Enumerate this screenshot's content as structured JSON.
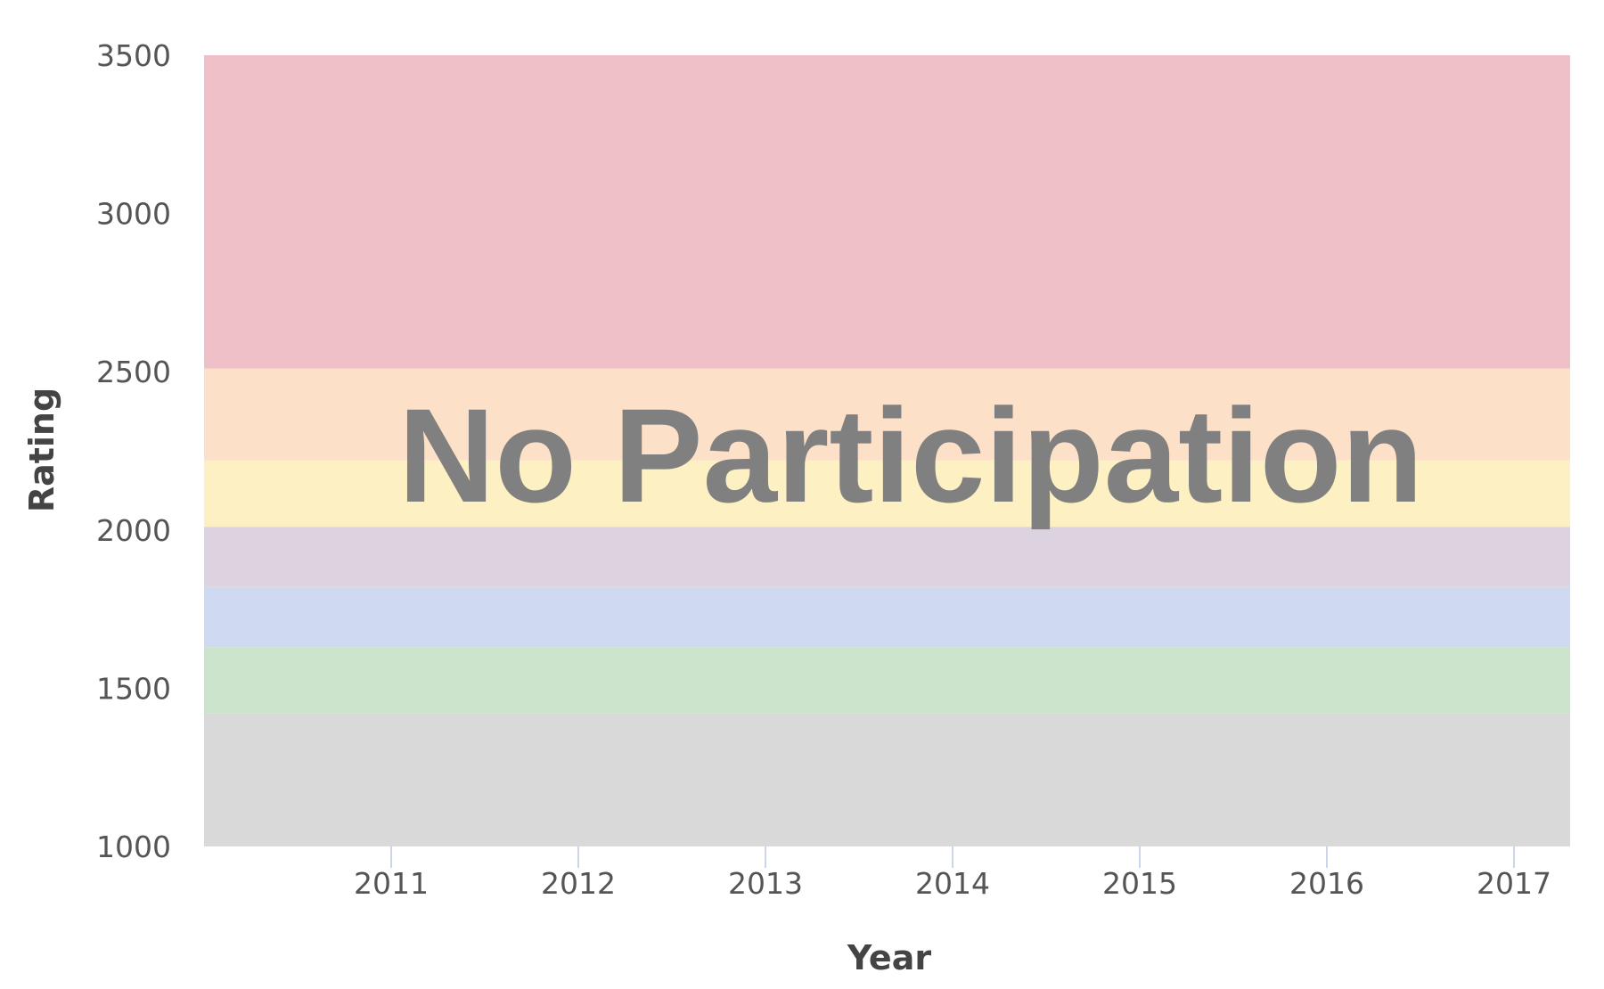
{
  "chart_data": {
    "type": "area",
    "xlabel": "Year",
    "ylabel": "Rating",
    "ylim": [
      1000,
      3500
    ],
    "xlim": [
      2010,
      2017.3
    ],
    "y_ticks": [
      1000,
      1500,
      2000,
      2500,
      3000,
      3500
    ],
    "x_ticks": [
      2011,
      2012,
      2013,
      2014,
      2015,
      2016,
      2017
    ],
    "rating_bands": [
      {
        "from": 1000,
        "to": 1420,
        "color": "#d9d9d9"
      },
      {
        "from": 1420,
        "to": 1630,
        "color": "#cce3cc"
      },
      {
        "from": 1630,
        "to": 1820,
        "color": "#cfdaf2"
      },
      {
        "from": 1820,
        "to": 2010,
        "color": "#ddd3e0"
      },
      {
        "from": 2010,
        "to": 2220,
        "color": "#fdf0c2"
      },
      {
        "from": 2220,
        "to": 2510,
        "color": "#fde0c8"
      },
      {
        "from": 2510,
        "to": 3500,
        "color": "#f0c0c8"
      }
    ],
    "series": [],
    "annotation": "No Participation",
    "grid": false
  },
  "colors": {
    "tick_text": "#555555",
    "axis_title": "#444444",
    "overlay_text": "#808080",
    "tick_mark": "#ccd6eb"
  }
}
